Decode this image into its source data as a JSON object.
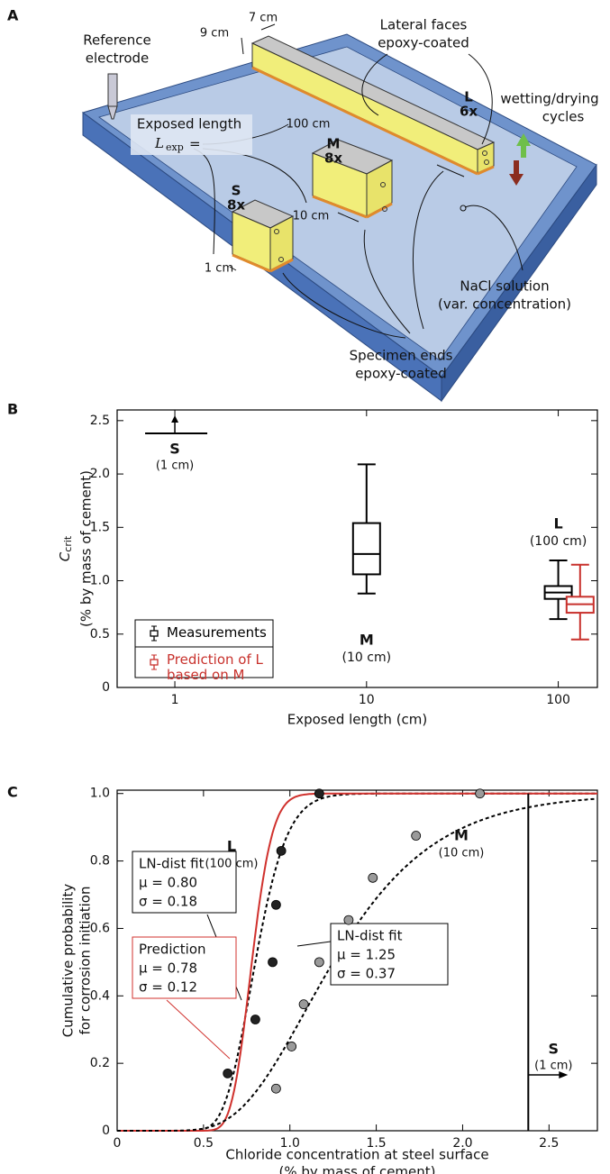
{
  "panel_labels": [
    "A",
    "B",
    "C"
  ],
  "diagram": {
    "reference_electrode": [
      "Reference",
      "electrode"
    ],
    "width": "7 cm",
    "height": "9 cm",
    "lateral_faces": [
      "Lateral faces",
      "epoxy-coated"
    ],
    "exposed_length": "Exposed length",
    "l_exp": {
      "symbol": "L",
      "sub": "exp",
      "eq": "="
    },
    "lengths": [
      "100 cm",
      "10 cm",
      "1 cm"
    ],
    "specimens": [
      {
        "name": "L",
        "count": "6x"
      },
      {
        "name": "M",
        "count": "8x"
      },
      {
        "name": "S",
        "count": "8x"
      }
    ],
    "wetting": [
      "wetting/drying",
      "cycles"
    ],
    "nacl": [
      "NaCl solution",
      "(var. concentration)"
    ],
    "specimen_ends": [
      "Specimen ends",
      "epoxy-coated"
    ]
  },
  "chart_data": [
    {
      "type": "box",
      "ylabel": "C",
      "ylabel_sub": "crit",
      "ylabel_note": "(% by mass of cement)",
      "xlabel": "Exposed length (cm)",
      "xlog": true,
      "xlim": [
        0.5,
        160
      ],
      "xticks": [
        1,
        10,
        100
      ],
      "ylim": [
        0,
        2.6
      ],
      "yticks": [
        0,
        0.5,
        {
          "value": 1,
          "label": "1.0"
        },
        1.5,
        {
          "value": 2,
          "label": "2.0"
        },
        2.5
      ],
      "series": [
        {
          "name": "Measurements",
          "color": "#000000",
          "boxes": [
            {
              "label": "M",
              "sublabel": "(10 cm)",
              "x": 10,
              "whislo": 0.88,
              "q1": 1.06,
              "med": 1.25,
              "q3": 1.54,
              "whishi": 2.09
            },
            {
              "label": "L",
              "sublabel": "(100 cm)",
              "x": 100,
              "whislo": 0.64,
              "q1": 0.83,
              "med": 0.89,
              "q3": 0.95,
              "whishi": 1.19
            }
          ]
        },
        {
          "name": "Prediction of L based on M",
          "color": "#c8312c",
          "boxes": [
            {
              "x": 130,
              "whislo": 0.45,
              "q1": 0.7,
              "med": 0.78,
              "q3": 0.85,
              "whishi": 1.15
            }
          ]
        }
      ],
      "lower_bound": {
        "label": "S",
        "sublabel": "(1 cm)",
        "x": 1,
        "value": 2.38
      }
    },
    {
      "type": "scatter",
      "ylabel": [
        "Cumulative probability",
        "for corrosion initiation"
      ],
      "xlabel": [
        "Chloride concentration at steel surface",
        "(% by mass of cement)"
      ],
      "xlim": [
        0,
        2.78
      ],
      "xticks": [
        0,
        0.5,
        {
          "value": 1,
          "label": "1.0"
        },
        1.5,
        {
          "value": 2,
          "label": "2.0"
        },
        2.5
      ],
      "ylim": [
        0,
        1.01
      ],
      "yticks": [
        0,
        0.2,
        0.4,
        0.6,
        0.8,
        {
          "value": 1,
          "label": "1.0"
        }
      ],
      "series": [
        {
          "name": "L",
          "sublabel": "(100 cm)",
          "color": "#222222",
          "x": [
            0.64,
            0.8,
            0.9,
            0.92,
            0.95,
            1.17
          ],
          "values": [
            0.17,
            0.33,
            0.5,
            0.67,
            0.83,
            1.0
          ]
        },
        {
          "name": "M",
          "sublabel": "(10 cm)",
          "color": "#9a9a9a",
          "x": [
            0.92,
            1.01,
            1.08,
            1.17,
            1.34,
            1.48,
            1.73,
            2.1
          ],
          "values": [
            0.125,
            0.25,
            0.375,
            0.5,
            0.625,
            0.75,
            0.875,
            1.0
          ]
        }
      ],
      "fits": [
        {
          "name": "LN-dist fit",
          "mu": 0.8,
          "sigma": 0.18,
          "mu_label": "μ = 0.80",
          "sigma_label": "σ = 0.18",
          "color": "#000000",
          "dashed": true
        },
        {
          "name": "Prediction",
          "mu": 0.78,
          "sigma": 0.12,
          "mu_label": "μ = 0.78",
          "sigma_label": "σ = 0.12",
          "color": "#d0312d",
          "dashed": false
        },
        {
          "name": "LN-dist fit",
          "mu": 1.25,
          "sigma": 0.37,
          "mu_label": "μ = 1.25",
          "sigma_label": "σ = 0.37",
          "color": "#000000",
          "dashed": true
        }
      ],
      "lower_bound": {
        "label": "S",
        "sublabel": "(1 cm)",
        "value": 2.38
      }
    }
  ]
}
